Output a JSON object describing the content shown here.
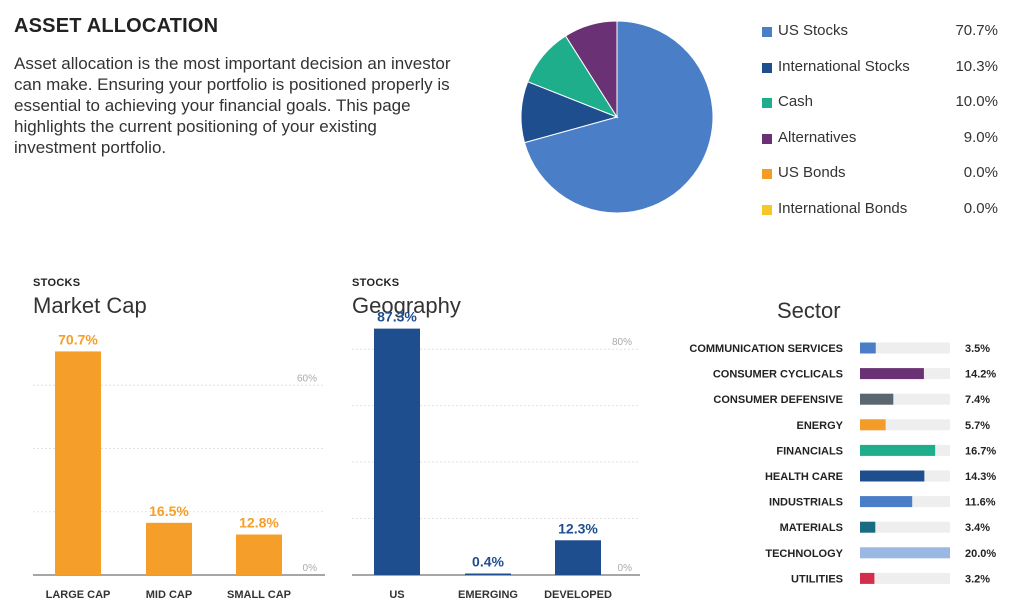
{
  "header": {
    "title": "ASSET ALLOCATION",
    "description": "Asset allocation is the most important decision an investor can make. Ensuring your portfolio is positioned properly is essential to achieving your financial goals. This page highlights the current positioning of your existing investment portfolio."
  },
  "chart_data": [
    {
      "type": "pie",
      "title": "",
      "legend_position": "right",
      "categories": [
        "US Stocks",
        "International Stocks",
        "Cash",
        "Alternatives",
        "US Bonds",
        "International Bonds"
      ],
      "values": [
        70.7,
        10.3,
        10.0,
        9.0,
        0.0,
        0.0
      ],
      "value_labels": [
        "70.7%",
        "10.3%",
        "10.0%",
        "9.0%",
        "0.0%",
        "0.0%"
      ],
      "colors": [
        "#4a7fc8",
        "#1f4e8f",
        "#1fae8c",
        "#6a3274",
        "#f39c2a",
        "#f7c72a"
      ]
    },
    {
      "type": "bar",
      "kicker": "STOCKS",
      "title": "Market Cap",
      "categories": [
        "LARGE CAP",
        "MID CAP",
        "SMALL CAP"
      ],
      "values": [
        70.7,
        16.5,
        12.8
      ],
      "value_labels": [
        "70.7%",
        "16.5%",
        "12.8%"
      ],
      "ylim": [
        0,
        80
      ],
      "gridlines": [
        0,
        20,
        40,
        60
      ],
      "tick_labels": [
        {
          "value": 60,
          "label": "60%"
        },
        {
          "value": 0,
          "label": "0%"
        }
      ],
      "color": "#f59f2a"
    },
    {
      "type": "bar",
      "kicker": "STOCKS",
      "title": "Geography",
      "categories": [
        "US",
        "EMERGING",
        "DEVELOPED"
      ],
      "values": [
        87.3,
        0.4,
        12.3
      ],
      "value_labels": [
        "87.3%",
        "0.4%",
        "12.3%"
      ],
      "ylim": [
        0,
        90
      ],
      "gridlines": [
        0,
        20,
        40,
        60,
        80
      ],
      "tick_labels": [
        {
          "value": 80,
          "label": "80%"
        },
        {
          "value": 0,
          "label": "0%"
        }
      ],
      "color": "#1f4e8f"
    },
    {
      "type": "bar",
      "orientation": "horizontal",
      "title": "Sector",
      "categories": [
        "COMMUNICATION SERVICES",
        "CONSUMER CYCLICALS",
        "CONSUMER DEFENSIVE",
        "ENERGY",
        "FINANCIALS",
        "HEALTH CARE",
        "INDUSTRIALS",
        "MATERIALS",
        "TECHNOLOGY",
        "UTILITIES"
      ],
      "values": [
        3.5,
        14.2,
        7.4,
        5.7,
        16.7,
        14.3,
        11.6,
        3.4,
        20.0,
        3.2
      ],
      "value_labels": [
        "3.5%",
        "14.2%",
        "7.4%",
        "5.7%",
        "16.7%",
        "14.3%",
        "11.6%",
        "3.4%",
        "20.0%",
        "3.2%"
      ],
      "xlim": [
        0,
        20
      ],
      "colors": [
        "#4a7fc8",
        "#6a3274",
        "#5a6670",
        "#f39c2a",
        "#1fae8c",
        "#1f4e8f",
        "#4a7fc8",
        "#1b6b80",
        "#9bb8e4",
        "#d42d4e"
      ],
      "track_color": "#eeeeee"
    }
  ]
}
